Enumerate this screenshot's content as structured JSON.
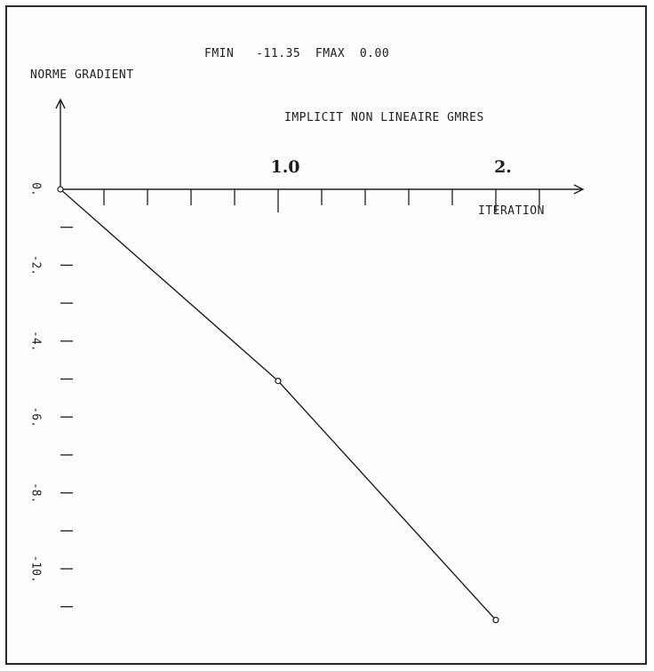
{
  "chart_data": {
    "type": "line",
    "header": "FMIN   -11.35  FMAX  0.00",
    "title": "IMPLICIT NON LINEAIRE GMRES",
    "ylabel": "NORME GRADIENT",
    "xlabel": "ITERATION",
    "x_ticks": [
      {
        "value": 1,
        "label": "1.0"
      },
      {
        "value": 2,
        "label": "2."
      }
    ],
    "y_ticks": [
      {
        "value": 0,
        "label": "0."
      },
      {
        "value": -2,
        "label": "-2."
      },
      {
        "value": -4,
        "label": "-4."
      },
      {
        "value": -6,
        "label": "-6."
      },
      {
        "value": -8,
        "label": "-8."
      },
      {
        "value": -10,
        "label": "-10."
      }
    ],
    "x_minor_step": 0.2,
    "y_minor_step": 1,
    "xlim": [
      0,
      2.4
    ],
    "ylim": [
      -11.35,
      0
    ],
    "series": [
      {
        "x": [
          0,
          1,
          2
        ],
        "y": [
          0,
          -5.05,
          -11.35
        ]
      }
    ],
    "color": "#1e1e1e"
  }
}
